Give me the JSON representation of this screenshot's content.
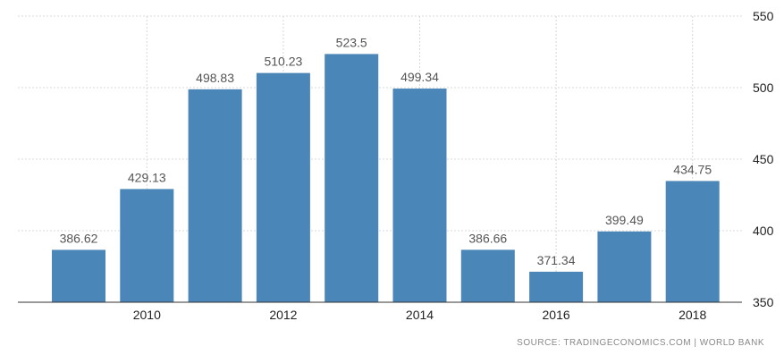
{
  "chart_data": {
    "type": "bar",
    "x": [
      2009,
      2010,
      2011,
      2012,
      2013,
      2014,
      2015,
      2016,
      2017,
      2018
    ],
    "values": [
      386.62,
      429.13,
      498.83,
      510.23,
      523.5,
      499.34,
      386.66,
      371.34,
      399.49,
      434.75
    ],
    "data_labels": [
      "386.62",
      "429.13",
      "498.83",
      "510.23",
      "523.5",
      "499.34",
      "386.66",
      "371.34",
      "399.49",
      "434.75"
    ],
    "x_ticks": [
      2010,
      2012,
      2014,
      2016,
      2018
    ],
    "x_tick_labels": [
      "2010",
      "2012",
      "2014",
      "2016",
      "2018"
    ],
    "y_ticks": [
      350,
      400,
      450,
      500,
      550
    ],
    "y_tick_labels": [
      "350",
      "400",
      "450",
      "500",
      "550"
    ],
    "ylim": [
      350,
      550
    ],
    "y_axis_side": "right",
    "grid": true,
    "bar_color": "#4a86b8",
    "title": "",
    "xlabel": "",
    "ylabel": ""
  },
  "source": {
    "text": "SOURCE: TRADINGECONOMICS.COM  |  WORLD BANK"
  }
}
